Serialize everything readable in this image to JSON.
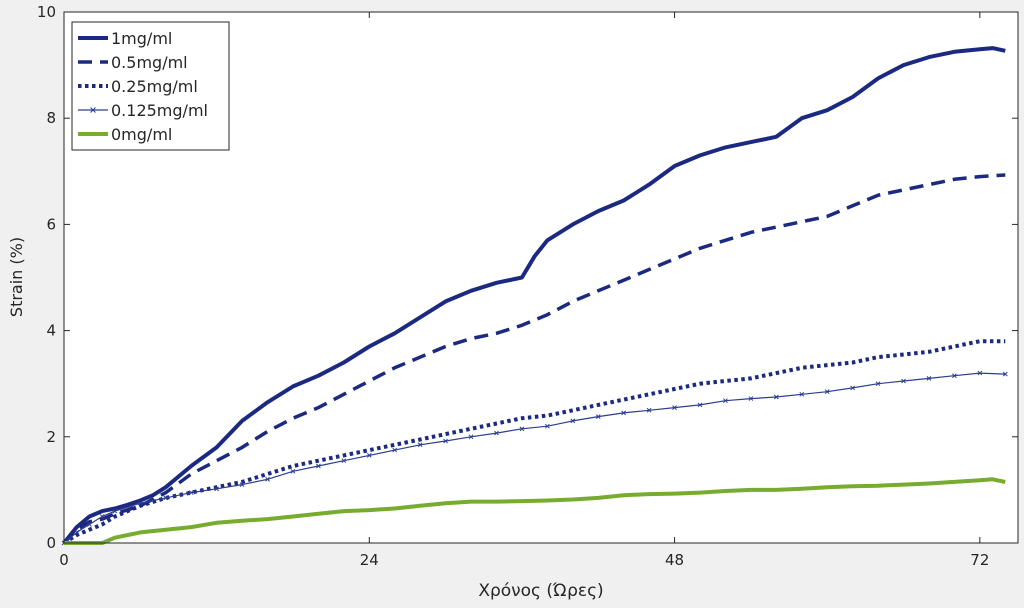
{
  "chart_data": {
    "type": "line",
    "title": "",
    "xlabel": "Χρόνος (Ώρες)",
    "ylabel": "Strain (%)",
    "xlim": [
      0,
      75
    ],
    "ylim": [
      0,
      10
    ],
    "xticks": [
      0,
      24,
      48,
      72
    ],
    "yticks": [
      0,
      2,
      4,
      6,
      8,
      10
    ],
    "legend_position": "top-left",
    "grid": false,
    "series": [
      {
        "name": "1mg/ml",
        "color": "#1b2a80",
        "style": "solid-thick",
        "x": [
          0,
          1,
          2,
          3,
          4,
          5,
          6,
          7,
          8,
          10,
          12,
          14,
          16,
          18,
          20,
          22,
          24,
          26,
          28,
          30,
          32,
          34,
          36,
          37,
          38,
          40,
          42,
          44,
          46,
          48,
          50,
          52,
          54,
          56,
          58,
          60,
          62,
          64,
          66,
          68,
          70,
          72,
          73,
          74
        ],
        "y": [
          0,
          0.3,
          0.5,
          0.6,
          0.65,
          0.72,
          0.8,
          0.9,
          1.05,
          1.45,
          1.8,
          2.3,
          2.65,
          2.95,
          3.15,
          3.4,
          3.7,
          3.95,
          4.25,
          4.55,
          4.75,
          4.9,
          5.0,
          5.4,
          5.7,
          6.0,
          6.25,
          6.45,
          6.75,
          7.1,
          7.3,
          7.45,
          7.55,
          7.65,
          8.0,
          8.15,
          8.4,
          8.75,
          9.0,
          9.15,
          9.25,
          9.3,
          9.32,
          9.27
        ]
      },
      {
        "name": "0.5mg/ml",
        "color": "#1b2a80",
        "style": "dashed",
        "x": [
          0,
          1,
          2,
          3,
          4,
          6,
          8,
          10,
          12,
          14,
          16,
          18,
          20,
          22,
          24,
          26,
          28,
          30,
          32,
          34,
          36,
          38,
          40,
          42,
          44,
          46,
          48,
          50,
          52,
          54,
          56,
          58,
          60,
          62,
          64,
          66,
          68,
          70,
          72,
          74
        ],
        "y": [
          0,
          0.25,
          0.4,
          0.45,
          0.55,
          0.7,
          0.95,
          1.3,
          1.55,
          1.8,
          2.1,
          2.35,
          2.55,
          2.8,
          3.05,
          3.3,
          3.5,
          3.7,
          3.85,
          3.95,
          4.1,
          4.3,
          4.55,
          4.75,
          4.95,
          5.15,
          5.35,
          5.55,
          5.7,
          5.85,
          5.95,
          6.05,
          6.15,
          6.35,
          6.55,
          6.65,
          6.75,
          6.85,
          6.9,
          6.93
        ]
      },
      {
        "name": "0.25mg/ml",
        "color": "#1b2a80",
        "style": "dotted",
        "x": [
          0,
          1,
          2,
          3,
          4,
          6,
          8,
          10,
          12,
          14,
          16,
          18,
          20,
          22,
          24,
          26,
          28,
          30,
          32,
          34,
          36,
          38,
          40,
          42,
          44,
          46,
          48,
          50,
          52,
          54,
          56,
          58,
          60,
          62,
          64,
          66,
          68,
          70,
          72,
          74
        ],
        "y": [
          0,
          0.15,
          0.25,
          0.35,
          0.5,
          0.7,
          0.85,
          0.95,
          1.05,
          1.15,
          1.3,
          1.45,
          1.55,
          1.65,
          1.75,
          1.85,
          1.95,
          2.05,
          2.15,
          2.25,
          2.35,
          2.4,
          2.5,
          2.6,
          2.7,
          2.8,
          2.9,
          3.0,
          3.05,
          3.1,
          3.2,
          3.3,
          3.35,
          3.4,
          3.5,
          3.55,
          3.6,
          3.7,
          3.8,
          3.8
        ]
      },
      {
        "name": "0.125mg/ml",
        "color": "#2c3e8f",
        "style": "thin-marker",
        "x": [
          0,
          1,
          2,
          3,
          4,
          6,
          8,
          10,
          12,
          14,
          16,
          18,
          20,
          22,
          24,
          26,
          28,
          30,
          32,
          34,
          36,
          38,
          40,
          42,
          44,
          46,
          48,
          50,
          52,
          54,
          56,
          58,
          60,
          62,
          64,
          66,
          68,
          70,
          72,
          74
        ],
        "y": [
          0,
          0.2,
          0.35,
          0.5,
          0.6,
          0.75,
          0.85,
          0.95,
          1.02,
          1.1,
          1.2,
          1.35,
          1.45,
          1.55,
          1.65,
          1.75,
          1.85,
          1.92,
          2.0,
          2.07,
          2.15,
          2.2,
          2.3,
          2.38,
          2.45,
          2.5,
          2.55,
          2.6,
          2.68,
          2.72,
          2.75,
          2.8,
          2.85,
          2.92,
          3.0,
          3.05,
          3.1,
          3.15,
          3.2,
          3.18
        ]
      },
      {
        "name": "0mg/ml",
        "color": "#77ac30",
        "style": "solid-thick",
        "x": [
          0,
          1,
          2,
          3,
          4,
          6,
          8,
          10,
          12,
          14,
          16,
          18,
          20,
          22,
          24,
          26,
          28,
          30,
          32,
          34,
          36,
          38,
          40,
          42,
          44,
          46,
          48,
          50,
          52,
          54,
          56,
          58,
          60,
          62,
          64,
          66,
          68,
          70,
          72,
          73,
          74
        ],
        "y": [
          0,
          0.0,
          0.0,
          0.0,
          0.1,
          0.2,
          0.25,
          0.3,
          0.38,
          0.42,
          0.45,
          0.5,
          0.55,
          0.6,
          0.62,
          0.65,
          0.7,
          0.75,
          0.78,
          0.78,
          0.79,
          0.8,
          0.82,
          0.85,
          0.9,
          0.92,
          0.93,
          0.95,
          0.98,
          1.0,
          1.0,
          1.02,
          1.05,
          1.07,
          1.08,
          1.1,
          1.12,
          1.15,
          1.18,
          1.2,
          1.15
        ]
      }
    ]
  }
}
